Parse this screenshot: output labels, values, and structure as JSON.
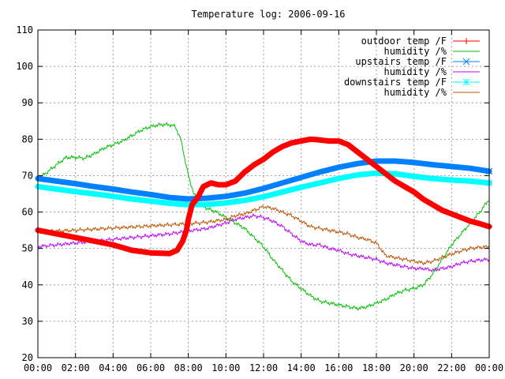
{
  "chart_data": {
    "type": "line",
    "title": "Temperature log: 2006-09-16",
    "xlabel": "",
    "ylabel": "",
    "xlim": [
      0,
      24
    ],
    "ylim": [
      20,
      110
    ],
    "grid": true,
    "legend_position": "top-right",
    "x_ticks": [
      "00:00",
      "02:00",
      "04:00",
      "06:00",
      "08:00",
      "10:00",
      "12:00",
      "14:00",
      "16:00",
      "18:00",
      "20:00",
      "22:00",
      "00:00"
    ],
    "y_ticks": [
      "20",
      "30",
      "40",
      "50",
      "60",
      "70",
      "80",
      "90",
      "100",
      "110"
    ],
    "series": [
      {
        "name": "outdoor temp /F",
        "color": "#ff0000",
        "marker": "plus",
        "x": [
          0,
          1,
          2,
          3,
          4,
          5,
          6,
          7,
          7.4,
          7.7,
          7.9,
          8.0,
          8.2,
          8.5,
          8.8,
          9.2,
          9.6,
          10.0,
          10.5,
          11.0,
          11.5,
          12.0,
          12.5,
          13.0,
          13.5,
          14.0,
          14.5,
          15.0,
          15.5,
          16.0,
          16.5,
          17.0,
          17.5,
          18.0,
          18.5,
          19.0,
          19.5,
          20.0,
          20.5,
          21.0,
          21.5,
          22.0,
          22.5,
          23.0,
          23.5,
          24.0
        ],
        "values": [
          55,
          54,
          53,
          52,
          51,
          49.5,
          48.8,
          48.6,
          49.5,
          52,
          55,
          58,
          62,
          64,
          67,
          68,
          67.5,
          67.5,
          68.5,
          71,
          73,
          74.5,
          76.5,
          78,
          79,
          79.5,
          80,
          79.8,
          79.5,
          79.5,
          78.5,
          76.5,
          74.5,
          72.5,
          70.5,
          68.5,
          67,
          65.5,
          63.5,
          62,
          60.5,
          59.5,
          58.5,
          57.5,
          56.8,
          56
        ]
      },
      {
        "name": "humidity /%",
        "color": "#00c000",
        "marker": "none",
        "x": [
          0,
          0.5,
          1,
          1.5,
          2,
          2.5,
          3,
          3.5,
          4,
          4.5,
          5,
          5.5,
          6,
          6.5,
          7,
          7.3,
          7.6,
          7.8,
          8.0,
          8.3,
          8.6,
          9.0,
          9.5,
          10.0,
          10.5,
          11.0,
          11.5,
          12.0,
          12.5,
          13.0,
          13.5,
          14.0,
          14.5,
          15.0,
          15.5,
          16.0,
          16.5,
          17.0,
          17.5,
          18.0,
          18.5,
          19.0,
          19.5,
          20.0,
          20.5,
          21.0,
          21.5,
          22.0,
          22.5,
          23.0,
          23.5,
          24.0
        ],
        "values": [
          69,
          71,
          73,
          75,
          75,
          74.8,
          76,
          77.5,
          78.5,
          79.5,
          81,
          82.5,
          83.5,
          84,
          84,
          83.5,
          80,
          75,
          70,
          65,
          62,
          61,
          60,
          58.5,
          57,
          55.5,
          53,
          50.5,
          47,
          44,
          41,
          39,
          37,
          35.5,
          35,
          34.5,
          34,
          33.5,
          34,
          35,
          36,
          37.5,
          38.5,
          39,
          40,
          43,
          47,
          51,
          54,
          57,
          60,
          63.5
        ]
      },
      {
        "name": "upstairs temp /F",
        "color": "#0080ff",
        "marker": "cross",
        "x": [
          0,
          1,
          2,
          3,
          4,
          5,
          6,
          7,
          8,
          9,
          10,
          11,
          12,
          13,
          14,
          15,
          16,
          17,
          18,
          19,
          20,
          21,
          22,
          23,
          24
        ],
        "values": [
          69.2,
          68.5,
          67.8,
          67,
          66.3,
          65.5,
          64.8,
          64,
          63.6,
          63.8,
          64.3,
          65.2,
          66.5,
          68,
          69.5,
          71,
          72.3,
          73.3,
          74,
          74,
          73.6,
          73,
          72.5,
          72,
          71.2
        ]
      },
      {
        "name": "humidity /%",
        "color": "#c000ff",
        "marker": "none",
        "x": [
          0,
          1,
          2,
          3,
          4,
          5,
          6,
          7,
          8,
          9,
          10,
          10.5,
          11,
          11.5,
          12,
          12.5,
          13,
          13.5,
          14,
          14.5,
          15,
          15.5,
          16,
          16.5,
          17,
          17.5,
          18,
          18.5,
          19,
          19.5,
          20,
          20.5,
          21,
          21.5,
          22,
          22.5,
          23,
          23.5,
          24
        ],
        "values": [
          50.5,
          51,
          51.5,
          52,
          52.5,
          53,
          53.5,
          54,
          54.8,
          55.5,
          57,
          58,
          58.5,
          59,
          58.5,
          57.5,
          56,
          54,
          52,
          51,
          51,
          50,
          49.5,
          48.5,
          48,
          47.5,
          47,
          46,
          45.5,
          45,
          44.5,
          44.5,
          44,
          44.5,
          45,
          46,
          46.5,
          46.8,
          47
        ]
      },
      {
        "name": "downstairs temp /F",
        "color": "#00ffff",
        "marker": "star",
        "x": [
          0,
          1,
          2,
          3,
          4,
          5,
          6,
          7,
          8,
          9,
          10,
          11,
          12,
          13,
          14,
          15,
          16,
          17,
          18,
          19,
          20,
          21,
          22,
          23,
          24
        ],
        "values": [
          67,
          66.3,
          65.6,
          65,
          64.3,
          63.6,
          63,
          62.4,
          62,
          62.1,
          62.5,
          63.2,
          64.2,
          65.5,
          66.8,
          68,
          69.2,
          70.2,
          70.7,
          70.5,
          69.8,
          69.2,
          68.8,
          68.5,
          68
        ]
      },
      {
        "name": "humidity /%",
        "color": "#c05000",
        "marker": "none",
        "x": [
          0,
          1,
          2,
          3,
          4,
          5,
          6,
          7,
          8,
          9,
          10,
          10.5,
          11,
          11.5,
          12,
          12.5,
          13,
          13.5,
          14,
          14.5,
          15,
          15.5,
          16,
          16.5,
          17,
          17.5,
          18,
          18.5,
          19,
          19.5,
          20,
          20.5,
          21,
          21.5,
          22,
          22.5,
          23,
          23.5,
          24
        ],
        "values": [
          54.5,
          54.8,
          55,
          55.3,
          55.6,
          55.9,
          56.2,
          56.5,
          56.8,
          57.2,
          58,
          59,
          59.5,
          60.5,
          61.5,
          61,
          60,
          59,
          57.5,
          56,
          55.5,
          55,
          54.5,
          54,
          53,
          52.5,
          51.5,
          48,
          47.5,
          47,
          46.5,
          46,
          46.5,
          47.5,
          48.5,
          49.3,
          50,
          50.3,
          50.5
        ]
      }
    ]
  }
}
